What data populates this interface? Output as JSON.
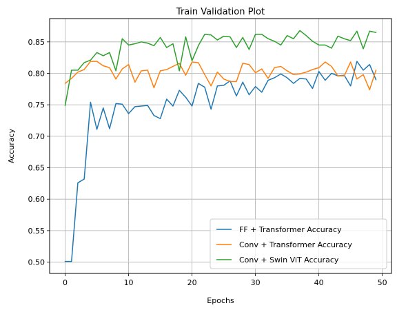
{
  "chart_data": {
    "type": "line",
    "title": "Train Validation Plot",
    "xlabel": "Epochs",
    "ylabel": "Accuracy",
    "xlim": [
      -2.45,
      51.45
    ],
    "ylim": [
      0.482,
      0.887
    ],
    "xticks": [
      0,
      10,
      20,
      30,
      40,
      50
    ],
    "yticks": [
      0.5,
      0.55,
      0.6,
      0.65,
      0.7,
      0.75,
      0.8,
      0.85
    ],
    "ytick_labels": [
      "0.50",
      "0.55",
      "0.60",
      "0.65",
      "0.70",
      "0.75",
      "0.80",
      "0.85"
    ],
    "grid": true,
    "legend_position": "lower-right",
    "series": [
      {
        "name": "FF + Transformer Accuracy",
        "color": "#1f77b4",
        "x": [
          0,
          1,
          2,
          3,
          4,
          5,
          6,
          7,
          8,
          9,
          10,
          11,
          12,
          13,
          14,
          15,
          16,
          17,
          18,
          19,
          20,
          21,
          22,
          23,
          24,
          25,
          26,
          27,
          28,
          29,
          30,
          31,
          32,
          33,
          34,
          35,
          36,
          37,
          38,
          39,
          40,
          41,
          42,
          43,
          44,
          45,
          46,
          47,
          48,
          49
        ],
        "values": [
          0.501,
          0.501,
          0.626,
          0.632,
          0.754,
          0.711,
          0.745,
          0.712,
          0.752,
          0.751,
          0.736,
          0.747,
          0.748,
          0.749,
          0.733,
          0.728,
          0.759,
          0.748,
          0.773,
          0.762,
          0.748,
          0.784,
          0.778,
          0.743,
          0.78,
          0.781,
          0.788,
          0.764,
          0.786,
          0.766,
          0.779,
          0.77,
          0.789,
          0.793,
          0.799,
          0.793,
          0.784,
          0.792,
          0.791,
          0.776,
          0.803,
          0.789,
          0.8,
          0.796,
          0.797,
          0.78,
          0.819,
          0.805,
          0.814,
          0.79
        ]
      },
      {
        "name": "Conv + Transformer Accuracy",
        "color": "#ff7f0e",
        "x": [
          0,
          1,
          2,
          3,
          4,
          5,
          6,
          7,
          8,
          9,
          10,
          11,
          12,
          13,
          14,
          15,
          16,
          17,
          18,
          19,
          20,
          21,
          22,
          23,
          24,
          25,
          26,
          27,
          28,
          29,
          30,
          31,
          32,
          33,
          34,
          35,
          36,
          37,
          38,
          39,
          40,
          41,
          42,
          43,
          44,
          45,
          46,
          47,
          48,
          49
        ],
        "values": [
          0.784,
          0.792,
          0.802,
          0.806,
          0.819,
          0.819,
          0.812,
          0.809,
          0.791,
          0.807,
          0.814,
          0.786,
          0.804,
          0.805,
          0.777,
          0.804,
          0.806,
          0.811,
          0.816,
          0.797,
          0.818,
          0.817,
          0.798,
          0.78,
          0.802,
          0.791,
          0.787,
          0.787,
          0.816,
          0.814,
          0.801,
          0.807,
          0.792,
          0.809,
          0.811,
          0.804,
          0.798,
          0.799,
          0.802,
          0.806,
          0.809,
          0.818,
          0.811,
          0.796,
          0.796,
          0.818,
          0.791,
          0.798,
          0.774,
          0.805
        ]
      },
      {
        "name": "Conv + Swin ViT Accuracy",
        "color": "#2ca02c",
        "x": [
          0,
          1,
          2,
          3,
          4,
          5,
          6,
          7,
          8,
          9,
          10,
          11,
          12,
          13,
          14,
          15,
          16,
          17,
          18,
          19,
          20,
          21,
          22,
          23,
          24,
          25,
          26,
          27,
          28,
          29,
          30,
          31,
          32,
          33,
          34,
          35,
          36,
          37,
          38,
          39,
          40,
          41,
          42,
          43,
          44,
          45,
          46,
          47,
          48,
          49
        ],
        "values": [
          0.749,
          0.805,
          0.805,
          0.817,
          0.821,
          0.833,
          0.828,
          0.833,
          0.804,
          0.855,
          0.845,
          0.847,
          0.85,
          0.848,
          0.844,
          0.857,
          0.841,
          0.847,
          0.804,
          0.858,
          0.82,
          0.844,
          0.862,
          0.861,
          0.853,
          0.859,
          0.858,
          0.841,
          0.857,
          0.838,
          0.862,
          0.862,
          0.855,
          0.851,
          0.845,
          0.86,
          0.855,
          0.868,
          0.86,
          0.851,
          0.845,
          0.845,
          0.84,
          0.859,
          0.855,
          0.852,
          0.867,
          0.839,
          0.867,
          0.865
        ]
      }
    ]
  }
}
